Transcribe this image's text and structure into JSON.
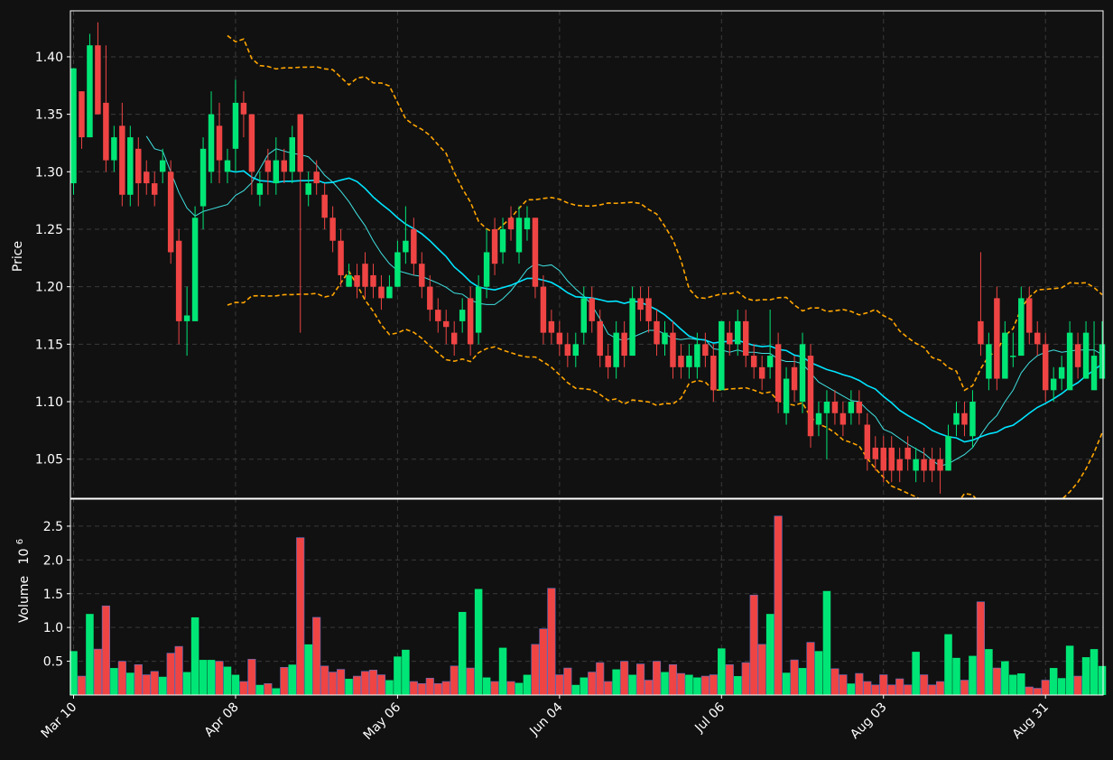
{
  "chart_data": {
    "type": "candlestick",
    "price_panel": {
      "ylabel": "Price",
      "ylim": [
        1.016,
        1.44
      ],
      "yticks": [
        "1.05",
        "1.10",
        "1.15",
        "1.20",
        "1.25",
        "1.30",
        "1.35",
        "1.40"
      ],
      "grid": true
    },
    "volume_panel": {
      "ylabel": "Volume",
      "ylabel_exponent": "10",
      "ylabel_exponent_power": "6",
      "ylim": [
        0,
        2.9
      ],
      "yticks": [
        "0.5",
        "1.0",
        "1.5",
        "2.0",
        "2.5"
      ],
      "grid": true
    },
    "xticks": [
      {
        "label": "Mar 10",
        "index": 0
      },
      {
        "label": "Apr 08",
        "index": 20
      },
      {
        "label": "May 06",
        "index": 40
      },
      {
        "label": "Jun 04",
        "index": 60
      },
      {
        "label": "Jul 06",
        "index": 80
      },
      {
        "label": "Aug 03",
        "index": 100
      },
      {
        "label": "Aug 31",
        "index": 120
      }
    ],
    "colors": {
      "up": "#00e676",
      "down": "#ef4444",
      "ma_fast": "#40e0e0",
      "ma_slow": "#00e5ff",
      "bands": "#ffa500",
      "background": "#111111",
      "frame": "#ffffff"
    },
    "candles": [
      [
        1.29,
        1.39,
        1.28,
        1.39,
        0.65
      ],
      [
        1.37,
        1.33,
        1.32,
        1.37,
        0.28
      ],
      [
        1.33,
        1.41,
        1.33,
        1.42,
        1.2
      ],
      [
        1.41,
        1.35,
        1.35,
        1.43,
        0.68
      ],
      [
        1.36,
        1.31,
        1.3,
        1.41,
        1.32
      ],
      [
        1.31,
        1.33,
        1.3,
        1.34,
        0.4
      ],
      [
        1.34,
        1.28,
        1.27,
        1.36,
        0.5
      ],
      [
        1.28,
        1.33,
        1.27,
        1.34,
        0.33
      ],
      [
        1.32,
        1.29,
        1.27,
        1.33,
        0.45
      ],
      [
        1.3,
        1.29,
        1.28,
        1.31,
        0.3
      ],
      [
        1.29,
        1.28,
        1.27,
        1.3,
        0.35
      ],
      [
        1.3,
        1.31,
        1.29,
        1.32,
        0.27
      ],
      [
        1.3,
        1.23,
        1.22,
        1.31,
        0.62
      ],
      [
        1.24,
        1.17,
        1.15,
        1.25,
        0.72
      ],
      [
        1.17,
        1.175,
        1.14,
        1.2,
        0.34
      ],
      [
        1.17,
        1.26,
        1.17,
        1.27,
        1.15
      ],
      [
        1.27,
        1.32,
        1.25,
        1.33,
        0.52
      ],
      [
        1.3,
        1.35,
        1.29,
        1.37,
        0.52
      ],
      [
        1.34,
        1.31,
        1.29,
        1.36,
        0.5
      ],
      [
        1.3,
        1.31,
        1.29,
        1.32,
        0.42
      ],
      [
        1.32,
        1.36,
        1.3,
        1.38,
        0.3
      ],
      [
        1.36,
        1.35,
        1.33,
        1.37,
        0.2
      ],
      [
        1.35,
        1.3,
        1.28,
        1.35,
        0.53
      ],
      [
        1.28,
        1.29,
        1.27,
        1.3,
        0.15
      ],
      [
        1.31,
        1.3,
        1.28,
        1.32,
        0.17
      ],
      [
        1.29,
        1.31,
        1.28,
        1.33,
        0.1
      ],
      [
        1.31,
        1.3,
        1.29,
        1.32,
        0.41
      ],
      [
        1.3,
        1.33,
        1.29,
        1.34,
        0.45
      ],
      [
        1.35,
        1.3,
        1.16,
        1.35,
        2.33
      ],
      [
        1.28,
        1.29,
        1.27,
        1.3,
        0.75
      ],
      [
        1.3,
        1.29,
        1.28,
        1.31,
        1.15
      ],
      [
        1.28,
        1.26,
        1.25,
        1.29,
        0.43
      ],
      [
        1.26,
        1.24,
        1.23,
        1.27,
        0.34
      ],
      [
        1.24,
        1.21,
        1.2,
        1.25,
        0.38
      ],
      [
        1.2,
        1.21,
        1.2,
        1.22,
        0.24
      ],
      [
        1.21,
        1.2,
        1.19,
        1.22,
        0.28
      ],
      [
        1.22,
        1.2,
        1.19,
        1.23,
        0.35
      ],
      [
        1.21,
        1.2,
        1.19,
        1.22,
        0.37
      ],
      [
        1.2,
        1.19,
        1.18,
        1.21,
        0.3
      ],
      [
        1.19,
        1.2,
        1.19,
        1.21,
        0.22
      ],
      [
        1.2,
        1.23,
        1.2,
        1.24,
        0.57
      ],
      [
        1.23,
        1.24,
        1.22,
        1.27,
        0.67
      ],
      [
        1.25,
        1.22,
        1.21,
        1.26,
        0.2
      ],
      [
        1.22,
        1.2,
        1.19,
        1.23,
        0.17
      ],
      [
        1.2,
        1.18,
        1.17,
        1.21,
        0.25
      ],
      [
        1.18,
        1.17,
        1.16,
        1.19,
        0.17
      ],
      [
        1.17,
        1.165,
        1.15,
        1.18,
        0.2
      ],
      [
        1.16,
        1.15,
        1.14,
        1.17,
        0.43
      ],
      [
        1.17,
        1.18,
        1.16,
        1.19,
        1.23
      ],
      [
        1.19,
        1.15,
        1.14,
        1.2,
        0.4
      ],
      [
        1.16,
        1.2,
        1.15,
        1.21,
        1.57
      ],
      [
        1.2,
        1.23,
        1.19,
        1.25,
        0.26
      ],
      [
        1.25,
        1.22,
        1.21,
        1.26,
        0.2
      ],
      [
        1.23,
        1.25,
        1.22,
        1.26,
        0.7
      ],
      [
        1.26,
        1.25,
        1.24,
        1.27,
        0.2
      ],
      [
        1.23,
        1.26,
        1.22,
        1.27,
        0.18
      ],
      [
        1.25,
        1.26,
        1.24,
        1.27,
        0.3
      ],
      [
        1.26,
        1.2,
        1.19,
        1.26,
        0.75
      ],
      [
        1.2,
        1.16,
        1.15,
        1.21,
        0.98
      ],
      [
        1.17,
        1.16,
        1.15,
        1.18,
        1.58
      ],
      [
        1.16,
        1.15,
        1.14,
        1.17,
        0.3
      ],
      [
        1.15,
        1.14,
        1.13,
        1.16,
        0.4
      ],
      [
        1.14,
        1.15,
        1.13,
        1.16,
        0.15
      ],
      [
        1.16,
        1.19,
        1.15,
        1.2,
        0.26
      ],
      [
        1.19,
        1.17,
        1.16,
        1.2,
        0.34
      ],
      [
        1.17,
        1.14,
        1.13,
        1.18,
        0.48
      ],
      [
        1.14,
        1.13,
        1.12,
        1.15,
        0.2
      ],
      [
        1.13,
        1.16,
        1.12,
        1.17,
        0.38
      ],
      [
        1.16,
        1.14,
        1.13,
        1.17,
        0.5
      ],
      [
        1.14,
        1.19,
        1.14,
        1.2,
        0.3
      ],
      [
        1.19,
        1.18,
        1.17,
        1.2,
        0.46
      ],
      [
        1.19,
        1.17,
        1.16,
        1.2,
        0.22
      ],
      [
        1.17,
        1.15,
        1.14,
        1.18,
        0.5
      ],
      [
        1.15,
        1.16,
        1.14,
        1.17,
        0.34
      ],
      [
        1.16,
        1.13,
        1.12,
        1.17,
        0.45
      ],
      [
        1.14,
        1.13,
        1.12,
        1.15,
        0.32
      ],
      [
        1.13,
        1.14,
        1.12,
        1.15,
        0.3
      ],
      [
        1.13,
        1.15,
        1.12,
        1.16,
        0.26
      ],
      [
        1.15,
        1.14,
        1.13,
        1.16,
        0.28
      ],
      [
        1.14,
        1.11,
        1.1,
        1.15,
        0.3
      ],
      [
        1.11,
        1.17,
        1.11,
        1.17,
        0.69
      ],
      [
        1.16,
        1.15,
        1.14,
        1.17,
        0.45
      ],
      [
        1.15,
        1.17,
        1.14,
        1.18,
        0.28
      ],
      [
        1.17,
        1.14,
        1.13,
        1.18,
        0.48
      ],
      [
        1.14,
        1.13,
        1.12,
        1.15,
        1.48
      ],
      [
        1.13,
        1.12,
        1.11,
        1.14,
        0.75
      ],
      [
        1.13,
        1.14,
        1.12,
        1.18,
        1.2
      ],
      [
        1.15,
        1.1,
        1.09,
        1.16,
        2.65
      ],
      [
        1.09,
        1.12,
        1.08,
        1.13,
        0.33
      ],
      [
        1.13,
        1.11,
        1.1,
        1.14,
        0.52
      ],
      [
        1.1,
        1.15,
        1.09,
        1.16,
        0.4
      ],
      [
        1.14,
        1.07,
        1.06,
        1.15,
        0.78
      ],
      [
        1.08,
        1.09,
        1.07,
        1.1,
        0.65
      ],
      [
        1.09,
        1.1,
        1.05,
        1.11,
        1.54
      ],
      [
        1.1,
        1.09,
        1.08,
        1.11,
        0.39
      ],
      [
        1.09,
        1.08,
        1.07,
        1.1,
        0.3
      ],
      [
        1.09,
        1.1,
        1.08,
        1.11,
        0.17
      ],
      [
        1.1,
        1.09,
        1.08,
        1.11,
        0.32
      ],
      [
        1.08,
        1.05,
        1.04,
        1.09,
        0.2
      ],
      [
        1.06,
        1.05,
        1.04,
        1.07,
        0.15
      ],
      [
        1.06,
        1.04,
        1.03,
        1.07,
        0.3
      ],
      [
        1.06,
        1.04,
        1.03,
        1.07,
        0.15
      ],
      [
        1.05,
        1.04,
        1.03,
        1.06,
        0.24
      ],
      [
        1.06,
        1.05,
        1.04,
        1.07,
        0.15
      ],
      [
        1.04,
        1.05,
        1.03,
        1.06,
        0.64
      ],
      [
        1.05,
        1.04,
        1.03,
        1.06,
        0.3
      ],
      [
        1.05,
        1.04,
        1.03,
        1.06,
        0.15
      ],
      [
        1.05,
        1.04,
        1.02,
        1.06,
        0.2
      ],
      [
        1.04,
        1.07,
        1.04,
        1.08,
        0.9
      ],
      [
        1.08,
        1.09,
        1.07,
        1.1,
        0.55
      ],
      [
        1.09,
        1.08,
        1.07,
        1.1,
        0.22
      ],
      [
        1.07,
        1.1,
        1.06,
        1.11,
        0.58
      ],
      [
        1.17,
        1.15,
        1.14,
        1.23,
        1.38
      ],
      [
        1.12,
        1.15,
        1.11,
        1.16,
        0.68
      ],
      [
        1.19,
        1.12,
        1.11,
        1.2,
        0.4
      ],
      [
        1.12,
        1.16,
        1.12,
        1.17,
        0.5
      ],
      [
        1.14,
        1.14,
        1.13,
        1.16,
        0.3
      ],
      [
        1.14,
        1.19,
        1.14,
        1.2,
        0.32
      ],
      [
        1.19,
        1.16,
        1.15,
        1.2,
        0.12
      ],
      [
        1.16,
        1.15,
        1.14,
        1.17,
        0.1
      ],
      [
        1.15,
        1.11,
        1.1,
        1.16,
        0.22
      ],
      [
        1.11,
        1.12,
        1.1,
        1.13,
        0.4
      ],
      [
        1.12,
        1.13,
        1.11,
        1.14,
        0.25
      ],
      [
        1.11,
        1.16,
        1.11,
        1.17,
        0.73
      ],
      [
        1.15,
        1.13,
        1.12,
        1.16,
        0.28
      ],
      [
        1.12,
        1.16,
        1.12,
        1.17,
        0.56
      ],
      [
        1.11,
        1.14,
        1.11,
        1.17,
        0.68
      ],
      [
        1.12,
        1.15,
        1.12,
        1.17,
        0.43
      ]
    ],
    "indicators": {
      "ma_fast_name": "",
      "ma_slow_name": "",
      "bands_name": ""
    }
  }
}
